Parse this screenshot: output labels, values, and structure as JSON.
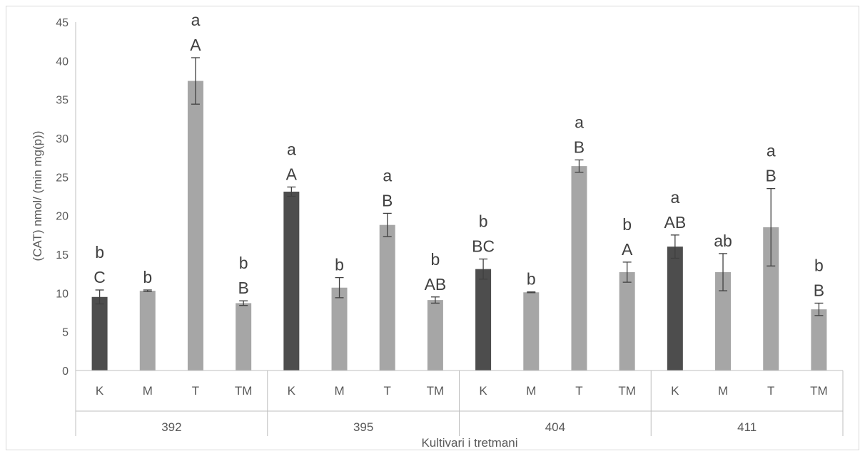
{
  "chart_data": {
    "type": "bar",
    "title": "",
    "ylabel": "(CAT) nmol/ (min mg(p))",
    "xlabel": "Kultivari i tretmani",
    "ylim": [
      0,
      45
    ],
    "yticks": [
      0,
      5,
      10,
      15,
      20,
      25,
      30,
      35,
      40,
      45
    ],
    "grid": false,
    "legend": "none",
    "colors": {
      "control": "#4d4d4d",
      "treatment": "#a6a6a6",
      "error_bar": "#404040",
      "axis": "#bfbfbf"
    },
    "groups": [
      {
        "name": "392",
        "bars": [
          {
            "category": "K",
            "value": 9.5,
            "error": 0.9,
            "labels": [
              "b",
              "C"
            ]
          },
          {
            "category": "M",
            "value": 10.3,
            "error": 0.1,
            "labels": [
              "b"
            ]
          },
          {
            "category": "T",
            "value": 37.4,
            "error": 3.0,
            "labels": [
              "a",
              "A"
            ]
          },
          {
            "category": "TM",
            "value": 8.7,
            "error": 0.3,
            "labels": [
              "b",
              "B"
            ]
          }
        ]
      },
      {
        "name": "395",
        "bars": [
          {
            "category": "K",
            "value": 23.1,
            "error": 0.6,
            "labels": [
              "a",
              "A"
            ]
          },
          {
            "category": "M",
            "value": 10.7,
            "error": 1.3,
            "labels": [
              "b"
            ]
          },
          {
            "category": "T",
            "value": 18.8,
            "error": 1.5,
            "labels": [
              "a",
              "B"
            ]
          },
          {
            "category": "TM",
            "value": 9.1,
            "error": 0.4,
            "labels": [
              "b",
              "AB"
            ]
          }
        ]
      },
      {
        "name": "404",
        "bars": [
          {
            "category": "K",
            "value": 13.1,
            "error": 1.3,
            "labels": [
              "b",
              "BC"
            ]
          },
          {
            "category": "M",
            "value": 10.1,
            "error": 0.05,
            "labels": [
              "b"
            ]
          },
          {
            "category": "T",
            "value": 26.4,
            "error": 0.8,
            "labels": [
              "a",
              "B"
            ]
          },
          {
            "category": "TM",
            "value": 12.7,
            "error": 1.3,
            "labels": [
              "b",
              "A"
            ]
          }
        ]
      },
      {
        "name": "411",
        "bars": [
          {
            "category": "K",
            "value": 16.0,
            "error": 1.5,
            "labels": [
              "a",
              "AB"
            ]
          },
          {
            "category": "M",
            "value": 12.7,
            "error": 2.4,
            "labels": [
              "ab"
            ]
          },
          {
            "category": "T",
            "value": 18.5,
            "error": 5.0,
            "labels": [
              "a",
              "B"
            ]
          },
          {
            "category": "TM",
            "value": 7.9,
            "error": 0.8,
            "labels": [
              "b",
              "B"
            ]
          }
        ]
      }
    ]
  }
}
